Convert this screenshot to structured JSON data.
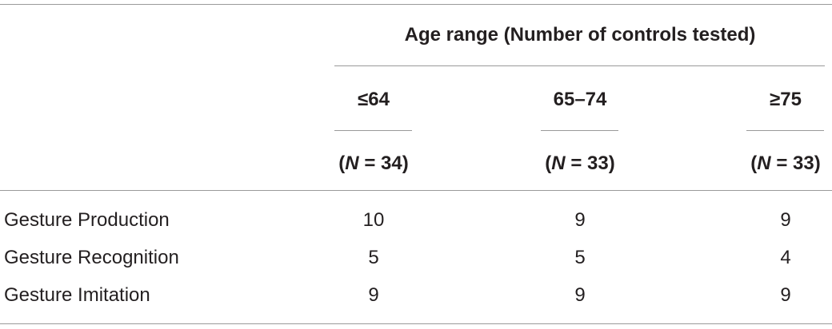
{
  "table": {
    "group_header": "Age range (Number of controls tested)",
    "columns": [
      {
        "label": "≤64",
        "n": {
          "open": "(",
          "symbol": "N",
          "rest": " = 34)"
        }
      },
      {
        "label": "65–74",
        "n": {
          "open": "(",
          "symbol": "N",
          "rest": " = 33)"
        }
      },
      {
        "label": "≥75",
        "n": {
          "open": "(",
          "symbol": "N",
          "rest": " = 33)"
        }
      }
    ],
    "rows": [
      {
        "label": "Gesture Production",
        "values": [
          10,
          9,
          9
        ]
      },
      {
        "label": "Gesture Recognition",
        "values": [
          5,
          5,
          4
        ]
      },
      {
        "label": "Gesture Imitation",
        "values": [
          9,
          9,
          9
        ]
      }
    ]
  }
}
